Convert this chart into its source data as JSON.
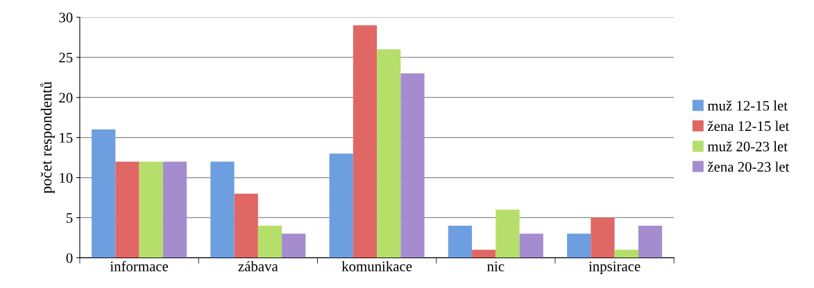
{
  "chart_data": {
    "type": "bar",
    "ylabel": "počet respondentů",
    "categories": [
      "informace",
      "zábava",
      "komunikace",
      "nic",
      "inpsirace"
    ],
    "series": [
      {
        "name": "muž 12-15 let",
        "color": "#6d9ee0",
        "values": [
          16,
          12,
          13,
          4,
          3
        ]
      },
      {
        "name": "žena 12-15 let",
        "color": "#e06764",
        "values": [
          12,
          8,
          29,
          1,
          5
        ]
      },
      {
        "name": "muž 20-23 let",
        "color": "#b5df6a",
        "values": [
          12,
          4,
          26,
          6,
          1
        ]
      },
      {
        "name": "žena 20-23 let",
        "color": "#a58ccf",
        "values": [
          12,
          3,
          23,
          3,
          4
        ]
      }
    ],
    "ylim": [
      0,
      30
    ],
    "yticks": [
      0,
      5,
      10,
      15,
      20,
      25,
      30
    ],
    "grid": "y",
    "legend": "right"
  }
}
